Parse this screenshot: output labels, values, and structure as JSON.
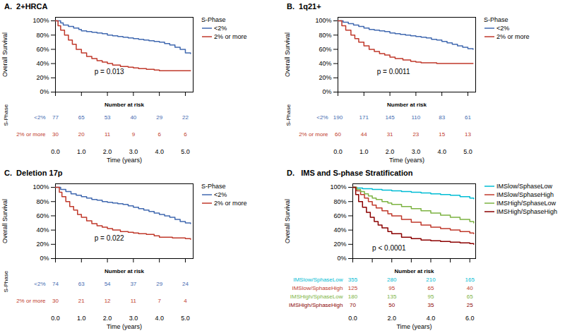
{
  "chart_data": [
    {
      "type": "step",
      "title": "A.  2+HRCA",
      "ylabel": "Overall Survival",
      "xlabel": "Time (years)",
      "xlim": [
        0,
        5.3
      ],
      "ylim": [
        0,
        105
      ],
      "xticks": [
        0,
        1,
        2,
        3,
        4,
        5
      ],
      "yticks": [
        {
          "value": 0,
          "label": "0%"
        },
        {
          "value": 20,
          "label": "20%"
        },
        {
          "value": 40,
          "label": "40%"
        },
        {
          "value": 60,
          "label": "60%"
        },
        {
          "value": 80,
          "label": "80%"
        },
        {
          "value": 100,
          "label": "100%"
        }
      ],
      "tick_labels": "y",
      "grid": false,
      "legend": "upper right",
      "legend_title": "S-Phase",
      "annotations": [
        {
          "text": "p = 0.013",
          "x": 1.5,
          "y": 28
        }
      ],
      "series": [
        {
          "name": "<2%",
          "color": "#4169B0",
          "x": [
            0,
            0.2,
            0.3,
            0.5,
            0.7,
            0.9,
            1.0,
            1.2,
            1.4,
            1.6,
            1.8,
            2.0,
            2.2,
            2.4,
            2.6,
            2.8,
            3.0,
            3.2,
            3.4,
            3.6,
            3.8,
            4.0,
            4.2,
            4.4,
            4.6,
            4.8,
            5.0,
            5.2
          ],
          "values": [
            100,
            97,
            94,
            92,
            90,
            88,
            86,
            85,
            84,
            83,
            82,
            80,
            79,
            78,
            77,
            76,
            75,
            74,
            73,
            72,
            71,
            70,
            68,
            66,
            63,
            60,
            55,
            54
          ]
        },
        {
          "name": "2% or more",
          "color": "#C0392B",
          "x": [
            0,
            0.1,
            0.2,
            0.35,
            0.5,
            0.65,
            0.8,
            1.0,
            1.2,
            1.4,
            1.6,
            1.8,
            2.0,
            2.2,
            2.5,
            2.8,
            3.0,
            3.2,
            3.5,
            3.8,
            4.0,
            4.5,
            5.0,
            5.2
          ],
          "values": [
            100,
            93,
            87,
            80,
            73,
            67,
            60,
            55,
            50,
            47,
            44,
            42,
            40,
            38,
            36,
            35,
            34,
            33,
            32,
            31,
            30,
            30,
            30,
            30
          ]
        }
      ],
      "risk_table": {
        "title": "Number at risk",
        "group_label": "S-Phase",
        "times": [
          0,
          1,
          2,
          3,
          4,
          5
        ],
        "rows": [
          {
            "name": "<2%",
            "color": "#4169B0",
            "values": [
              77,
              65,
              53,
              40,
              29,
              22
            ]
          },
          {
            "name": "2% or more",
            "color": "#C0392B",
            "values": [
              30,
              20,
              11,
              9,
              6,
              6
            ]
          }
        ]
      }
    },
    {
      "type": "step",
      "title": "B.  1q21+",
      "ylabel": "Overall Survival",
      "xlabel": "Time (years)",
      "xlim": [
        0,
        5.3
      ],
      "ylim": [
        0,
        105
      ],
      "xticks": [
        0,
        1,
        2,
        3,
        4,
        5
      ],
      "yticks": [
        {
          "value": 0,
          "label": "0%"
        },
        {
          "value": 20,
          "label": "20%"
        },
        {
          "value": 40,
          "label": "40%"
        },
        {
          "value": 60,
          "label": "60%"
        },
        {
          "value": 80,
          "label": "80%"
        },
        {
          "value": 100,
          "label": "100%"
        }
      ],
      "tick_labels": "y",
      "grid": false,
      "legend": "upper right",
      "legend_title": "S-Phase",
      "annotations": [
        {
          "text": "p = 0.0011",
          "x": 1.5,
          "y": 28
        }
      ],
      "series": [
        {
          "name": "<2%",
          "color": "#4169B0",
          "x": [
            0,
            0.2,
            0.4,
            0.6,
            0.8,
            1.0,
            1.2,
            1.4,
            1.6,
            1.8,
            2.0,
            2.2,
            2.4,
            2.6,
            2.8,
            3.0,
            3.2,
            3.4,
            3.6,
            3.8,
            4.0,
            4.2,
            4.4,
            4.6,
            4.8,
            5.0,
            5.2
          ],
          "values": [
            100,
            98,
            96,
            94,
            92,
            90,
            88,
            87,
            86,
            85,
            83,
            82,
            81,
            80,
            79,
            78,
            77,
            76,
            74,
            73,
            71,
            69,
            67,
            65,
            63,
            61,
            60
          ]
        },
        {
          "name": "2% or more",
          "color": "#C0392B",
          "x": [
            0,
            0.15,
            0.3,
            0.5,
            0.65,
            0.8,
            1.0,
            1.2,
            1.4,
            1.6,
            1.8,
            2.0,
            2.2,
            2.5,
            2.8,
            3.0,
            3.2,
            3.5,
            3.8,
            4.0,
            4.5,
            5.0,
            5.2
          ],
          "values": [
            100,
            93,
            87,
            80,
            75,
            70,
            65,
            60,
            57,
            54,
            52,
            49,
            47,
            45,
            43,
            42,
            41,
            41,
            40,
            40,
            40,
            40,
            40
          ]
        }
      ],
      "risk_table": {
        "title": "Number at risk",
        "group_label": "S-Phase",
        "times": [
          0,
          1,
          2,
          3,
          4,
          5
        ],
        "rows": [
          {
            "name": "<2%",
            "color": "#4169B0",
            "values": [
              190,
              171,
              145,
              110,
              83,
              61
            ]
          },
          {
            "name": "2% or more",
            "color": "#C0392B",
            "values": [
              60,
              44,
              31,
              23,
              15,
              13
            ]
          }
        ]
      }
    },
    {
      "type": "step",
      "title": "C.  Deletion 17p",
      "ylabel": "Overall Survival",
      "xlabel": "Time (years)",
      "xlim": [
        0,
        5.3
      ],
      "ylim": [
        0,
        105
      ],
      "xticks": [
        0,
        1,
        2,
        3,
        4,
        5
      ],
      "yticks": [
        {
          "value": 0,
          "label": "0%"
        },
        {
          "value": 20,
          "label": "20%"
        },
        {
          "value": 40,
          "label": "40%"
        },
        {
          "value": 60,
          "label": "60%"
        },
        {
          "value": 80,
          "label": "80%"
        },
        {
          "value": 100,
          "label": "100%"
        }
      ],
      "tick_labels": "y",
      "grid": false,
      "legend": "upper right",
      "legend_title": "S-Phase",
      "annotations": [
        {
          "text": "p = 0.022",
          "x": 1.5,
          "y": 28
        }
      ],
      "series": [
        {
          "name": "<2%",
          "color": "#4169B0",
          "x": [
            0,
            0.2,
            0.4,
            0.6,
            0.8,
            1.0,
            1.2,
            1.4,
            1.6,
            1.8,
            2.0,
            2.2,
            2.4,
            2.6,
            2.8,
            3.0,
            3.2,
            3.4,
            3.6,
            3.8,
            4.0,
            4.2,
            4.4,
            4.6,
            4.8,
            5.0,
            5.2
          ],
          "values": [
            100,
            97,
            94,
            91,
            89,
            87,
            85,
            83,
            82,
            80,
            79,
            78,
            77,
            76,
            74,
            72,
            70,
            68,
            66,
            64,
            62,
            60,
            58,
            55,
            52,
            50,
            49
          ]
        },
        {
          "name": "2% or more",
          "color": "#C0392B",
          "x": [
            0,
            0.15,
            0.25,
            0.4,
            0.55,
            0.7,
            0.85,
            1.0,
            1.2,
            1.4,
            1.6,
            1.8,
            2.0,
            2.2,
            2.5,
            2.8,
            3.0,
            3.2,
            3.5,
            3.8,
            4.0,
            4.5,
            5.0,
            5.2
          ],
          "values": [
            100,
            93,
            87,
            80,
            73,
            68,
            62,
            58,
            53,
            49,
            46,
            44,
            42,
            40,
            38,
            37,
            36,
            35,
            34,
            32,
            30,
            29,
            28,
            27
          ]
        }
      ],
      "risk_table": {
        "title": "Number at risk",
        "group_label": "S-Phase",
        "times": [
          0,
          1,
          2,
          3,
          4,
          5
        ],
        "rows": [
          {
            "name": "<2%",
            "color": "#4169B0",
            "values": [
              74,
              63,
              54,
              37,
              29,
              24
            ]
          },
          {
            "name": "2% or more",
            "color": "#C0392B",
            "values": [
              30,
              21,
              12,
              11,
              7,
              4
            ]
          }
        ]
      }
    },
    {
      "type": "step",
      "title": "D.   IMS and S-phase Stratification",
      "ylabel": "Overall Survival",
      "xlabel": "Time (years)",
      "xlim": [
        0,
        6.3
      ],
      "ylim": [
        0,
        105
      ],
      "xticks": [
        0,
        1,
        2,
        3,
        4,
        5,
        6
      ],
      "yticks": [
        {
          "value": 0,
          "label": "0%"
        },
        {
          "value": 20,
          "label": "20%"
        },
        {
          "value": 40,
          "label": "40%"
        },
        {
          "value": 60,
          "label": "60%"
        },
        {
          "value": 80,
          "label": "80%"
        },
        {
          "value": 100,
          "label": "100%"
        }
      ],
      "tick_labels": "y",
      "grid": false,
      "legend": "upper right",
      "annotations": [
        {
          "text": "p < 0.0001",
          "x": 1.0,
          "y": 15
        }
      ],
      "series": [
        {
          "name": "IMSlow/SphaseLow",
          "color": "#00BCD4",
          "x": [
            0,
            0.2,
            0.5,
            1.0,
            1.5,
            2.0,
            2.5,
            3.0,
            3.5,
            4.0,
            4.5,
            5.0,
            5.5,
            6.0,
            6.2
          ],
          "values": [
            100,
            99,
            98,
            97,
            96,
            95,
            94,
            93,
            92,
            91,
            90,
            89,
            87,
            85,
            84
          ]
        },
        {
          "name": "IMSlow/SphaseHigh",
          "color": "#C0392B",
          "x": [
            0,
            0.2,
            0.4,
            0.6,
            0.8,
            1.0,
            1.2,
            1.5,
            1.8,
            2.0,
            2.5,
            3.0,
            3.5,
            4.0,
            4.5,
            5.0,
            5.5,
            6.0,
            6.2
          ],
          "values": [
            100,
            95,
            90,
            85,
            80,
            75,
            71,
            67,
            63,
            60,
            55,
            51,
            47,
            44,
            42,
            40,
            38,
            36,
            35
          ]
        },
        {
          "name": "IMSHigh/SphaseLow",
          "color": "#7CB342",
          "x": [
            0,
            0.2,
            0.4,
            0.6,
            0.8,
            1.0,
            1.2,
            1.5,
            1.8,
            2.0,
            2.5,
            3.0,
            3.5,
            4.0,
            4.5,
            5.0,
            5.5,
            6.0,
            6.2
          ],
          "values": [
            100,
            97,
            94,
            91,
            88,
            85,
            83,
            80,
            78,
            76,
            73,
            70,
            67,
            64,
            61,
            58,
            55,
            52,
            50
          ]
        },
        {
          "name": "IMSHigh/SphaseHigh",
          "color": "#8B0000",
          "x": [
            0,
            0.15,
            0.3,
            0.5,
            0.7,
            0.9,
            1.1,
            1.3,
            1.5,
            1.8,
            2.0,
            2.5,
            3.0,
            3.5,
            4.0,
            4.5,
            5.0,
            5.5,
            6.0,
            6.2
          ],
          "values": [
            100,
            90,
            80,
            72,
            65,
            58,
            52,
            47,
            43,
            38,
            35,
            30,
            28,
            26,
            25,
            24,
            23,
            22,
            21,
            20
          ]
        }
      ],
      "risk_table": {
        "title": "Number at risk",
        "times": [
          0,
          2,
          4,
          6
        ],
        "rows": [
          {
            "name": "IMSlow/SphaseLow",
            "color": "#00BCD4",
            "values": [
              355,
              280,
              210,
              165
            ]
          },
          {
            "name": "IMSlow/SphaseHigh",
            "color": "#C0392B",
            "values": [
              125,
              95,
              65,
              40
            ]
          },
          {
            "name": "IMSHigh/SphaseLow",
            "color": "#7CB342",
            "values": [
              180,
              135,
              95,
              65
            ]
          },
          {
            "name": "IMSHigh/SphaseHigh",
            "color": "#8B0000",
            "values": [
              70,
              50,
              35,
              25
            ]
          }
        ]
      }
    }
  ]
}
